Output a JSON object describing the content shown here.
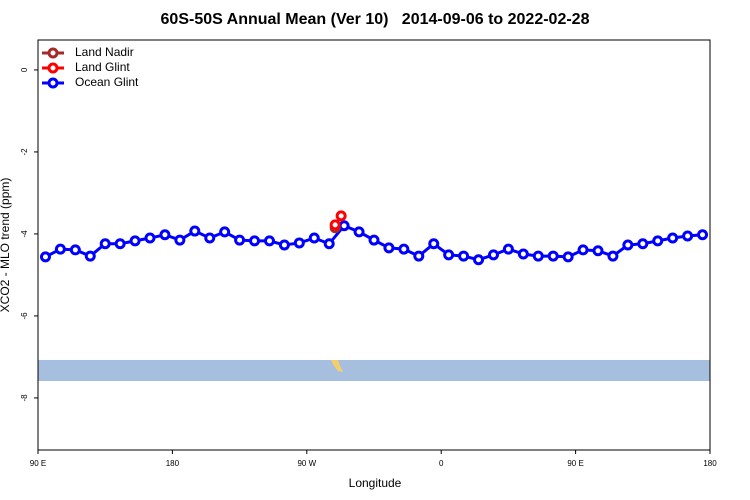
{
  "chart_data": {
    "type": "line",
    "title": "60S-50S Annual Mean (Ver 10)   2014-09-06 to 2022-02-28",
    "xlabel": "Longitude",
    "ylabel": "XCO2 - MLO trend (ppm)",
    "xlim": [
      90,
      540
    ],
    "xticks": [
      {
        "value": 90,
        "label": "90 E"
      },
      {
        "value": 180,
        "label": "180"
      },
      {
        "value": 270,
        "label": "90 W"
      },
      {
        "value": 360,
        "label": "0"
      },
      {
        "value": 450,
        "label": "90 E"
      },
      {
        "value": 540,
        "label": "180"
      }
    ],
    "ylim": [
      -9.27,
      0.73
    ],
    "yticks": [
      0,
      -2,
      -4,
      -6,
      -8
    ],
    "legend": "top-left",
    "series": [
      {
        "name": "Land Nadir",
        "color": "#a52a2a",
        "x": [
          289
        ],
        "values": [
          -3.85
        ]
      },
      {
        "name": "Land Glint",
        "color": "#ff0000",
        "x": [
          289,
          293
        ],
        "values": [
          -3.78,
          -3.56
        ]
      },
      {
        "name": "Ocean Glint",
        "color": "#0000ff",
        "x": [
          95,
          105,
          115,
          125,
          135,
          145,
          155,
          165,
          175,
          185,
          195,
          205,
          215,
          225,
          235,
          245,
          255,
          265,
          275,
          285,
          295,
          305,
          315,
          325,
          335,
          345,
          355,
          365,
          375,
          385,
          395,
          405,
          415,
          425,
          435,
          445,
          455,
          465,
          475,
          485,
          495,
          505,
          515,
          525,
          535
        ],
        "values": [
          -4.56,
          -4.37,
          -4.39,
          -4.54,
          -4.24,
          -4.24,
          -4.17,
          -4.1,
          -4.02,
          -4.15,
          -3.93,
          -4.1,
          -3.95,
          -4.15,
          -4.17,
          -4.17,
          -4.27,
          -4.22,
          -4.1,
          -4.24,
          -3.8,
          -3.95,
          -4.15,
          -4.34,
          -4.37,
          -4.54,
          -4.24,
          -4.51,
          -4.54,
          -4.63,
          -4.51,
          -4.37,
          -4.49,
          -4.54,
          -4.54,
          -4.56,
          -4.39,
          -4.41,
          -4.54,
          -4.27,
          -4.24,
          -4.17,
          -4.1,
          -4.05,
          -4.02
        ]
      }
    ]
  }
}
